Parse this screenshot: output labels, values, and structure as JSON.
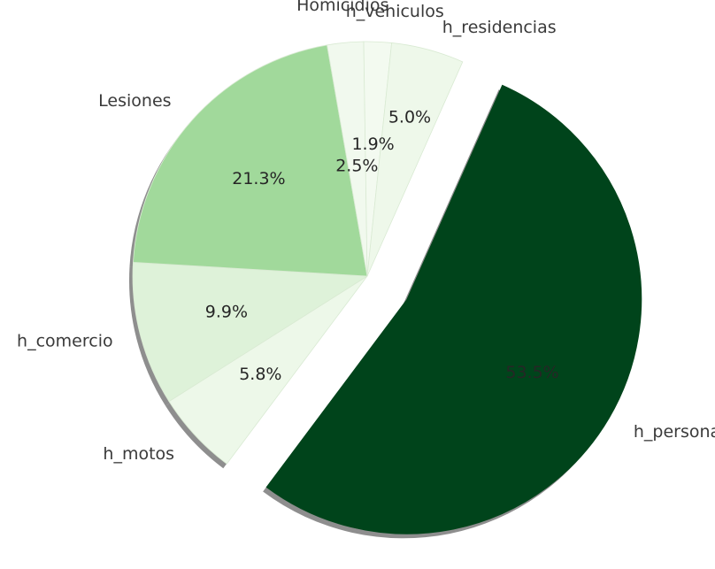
{
  "chart_data": {
    "type": "pie",
    "title": "",
    "slices": [
      {
        "label": "h_personas",
        "value": 53.5,
        "pct_text": "53.5%",
        "color": "#00441b",
        "pct_color": "#1f4d2a",
        "exploded": true
      },
      {
        "label": "h_motos",
        "value": 5.8,
        "pct_text": "5.8%",
        "color": "#edf8e9",
        "pct_color": "#262626",
        "exploded": false
      },
      {
        "label": "h_comercio",
        "value": 9.9,
        "pct_text": "9.9%",
        "color": "#def2d9",
        "pct_color": "#262626",
        "exploded": false
      },
      {
        "label": "Lesiones",
        "value": 21.3,
        "pct_text": "21.3%",
        "color": "#a1d99b",
        "pct_color": "#262626",
        "exploded": false
      },
      {
        "label": "Homicidios",
        "value": 2.5,
        "pct_text": "2.5%",
        "color": "#f1f9ee",
        "pct_color": "#262626",
        "exploded": false
      },
      {
        "label": "h_vehiculos",
        "value": 1.9,
        "pct_text": "1.9%",
        "color": "#f3faf0",
        "pct_color": "#262626",
        "exploded": false
      },
      {
        "label": "h_residencias",
        "value": 5.0,
        "pct_text": "5.0%",
        "color": "#eef8ea",
        "pct_color": "#262626",
        "exploded": false
      }
    ],
    "start_angle_deg": -66,
    "direction": "clockwise",
    "shadow": true,
    "legend": "none"
  }
}
